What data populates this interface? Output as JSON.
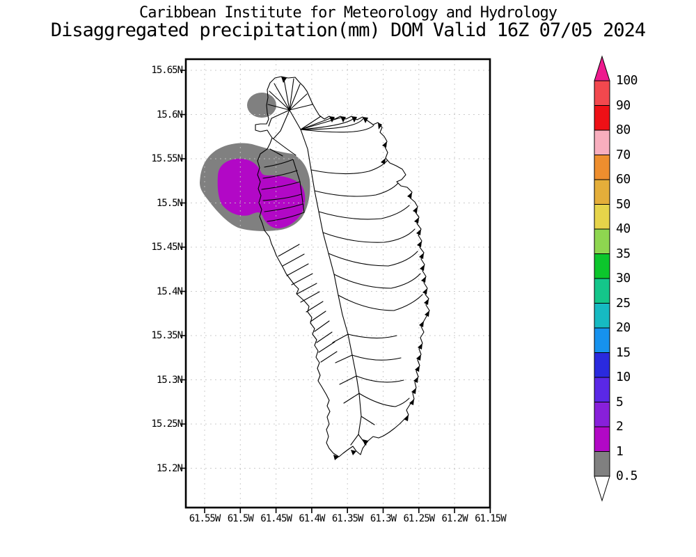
{
  "titles": {
    "line1": "Caribbean Institute for Meteorology and Hydrology",
    "line2": "Disaggregated precipitation(mm) DOM Valid 16Z 07/05 2024"
  },
  "map": {
    "region": "Dominica (DOM)",
    "lat_labels": [
      "15.65N",
      "15.6N",
      "15.55N",
      "15.5N",
      "15.45N",
      "15.4N",
      "15.35N",
      "15.3N",
      "15.25N",
      "15.2N"
    ],
    "lon_labels": [
      "61.55W",
      "61.5W",
      "61.45W",
      "61.4W",
      "61.35W",
      "61.3W",
      "61.25W",
      "61.2W",
      "61.15W"
    ],
    "shaded_regions": [
      {
        "value_range_mm": "0.5-1",
        "color": "#808080",
        "location": "small patch off NW coast near 15.61N"
      },
      {
        "value_range_mm": "0.5-1",
        "color": "#808080",
        "location": "large patch on/off west coast 15.47N-15.56N"
      },
      {
        "value_range_mm": "1-2",
        "color": "#B208C6",
        "location": "core of west-coast patch 15.48N-15.55N"
      }
    ]
  },
  "legend": {
    "units": "mm",
    "tick_labels_top_to_bottom": [
      "100",
      "90",
      "80",
      "70",
      "60",
      "50",
      "40",
      "35",
      "30",
      "25",
      "20",
      "15",
      "10",
      "5",
      "2",
      "1",
      "0.5"
    ],
    "cell_colors_top_to_bottom": [
      "#F2484E",
      "#EE1016",
      "#F8AEBE",
      "#EE8E2E",
      "#E4AE3A",
      "#E6D44A",
      "#8ED650",
      "#0CC62C",
      "#14C68A",
      "#16BAC2",
      "#1692EE",
      "#2A2ADE",
      "#5A28E6",
      "#8820DA",
      "#B208C6",
      "#808080"
    ],
    "over_arrow_color": "#EE1A8E",
    "under_arrow_color": "#FFFFFF",
    "grid_color": "#C4C4C4"
  }
}
